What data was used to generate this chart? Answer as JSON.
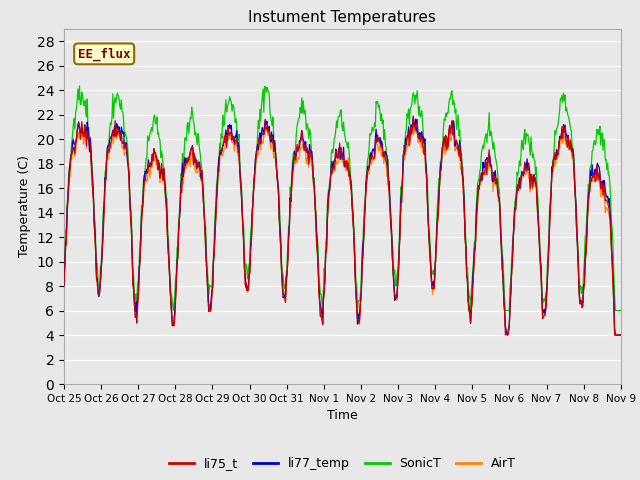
{
  "title": "Instument Temperatures",
  "ylabel": "Temperature (C)",
  "xlabel": "Time",
  "ylim": [
    0,
    29
  ],
  "yticks": [
    0,
    2,
    4,
    6,
    8,
    10,
    12,
    14,
    16,
    18,
    20,
    22,
    24,
    26,
    28
  ],
  "xtick_labels": [
    "Oct 25",
    "Oct 26",
    "Oct 27",
    "Oct 28",
    "Oct 29",
    "Oct 30",
    "Oct 31",
    "Nov 1",
    "Nov 2",
    "Nov 3",
    "Nov 4",
    "Nov 5",
    "Nov 6",
    "Nov 7",
    "Nov 8",
    "Nov 9"
  ],
  "colors": {
    "li75_t": "#cc0000",
    "li77_temp": "#0000cc",
    "SonicT": "#00cc00",
    "AirT": "#ff8800"
  },
  "bg_color": "#e8e8e8",
  "fig_color": "#e8e8e8",
  "annotation_text": "EE_flux",
  "annotation_bg": "#ffffcc",
  "annotation_border": "#996600",
  "n_days": 15,
  "n_points_per_day": 48
}
